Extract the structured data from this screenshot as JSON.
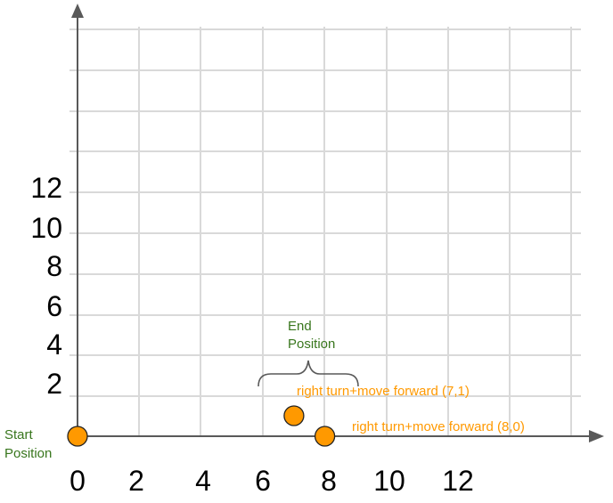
{
  "colors": {
    "grid": "#d9d9d9",
    "axis": "#595959",
    "point": "#ff9900",
    "annotation_green": "#38761d",
    "annotation_orange": "#ff9900"
  },
  "x_axis": {
    "tick_labels": [
      "0",
      "2",
      "4",
      "6",
      "8",
      "10",
      "12"
    ]
  },
  "y_axis": {
    "tick_labels": [
      "2",
      "4",
      "6",
      "8",
      "10",
      "12"
    ]
  },
  "labels": {
    "start_line1": "Start",
    "start_line2": "Position",
    "end_line1": "End",
    "end_line2": "Position"
  },
  "points": [
    {
      "name": "start",
      "x": 0,
      "y": 0,
      "label": ""
    },
    {
      "name": "move-7-1",
      "x": 7,
      "y": 1,
      "label": "right turn+move forward (7,1)"
    },
    {
      "name": "move-8-0",
      "x": 8,
      "y": 0,
      "label": "right turn+move forward (8,0)"
    }
  ]
}
